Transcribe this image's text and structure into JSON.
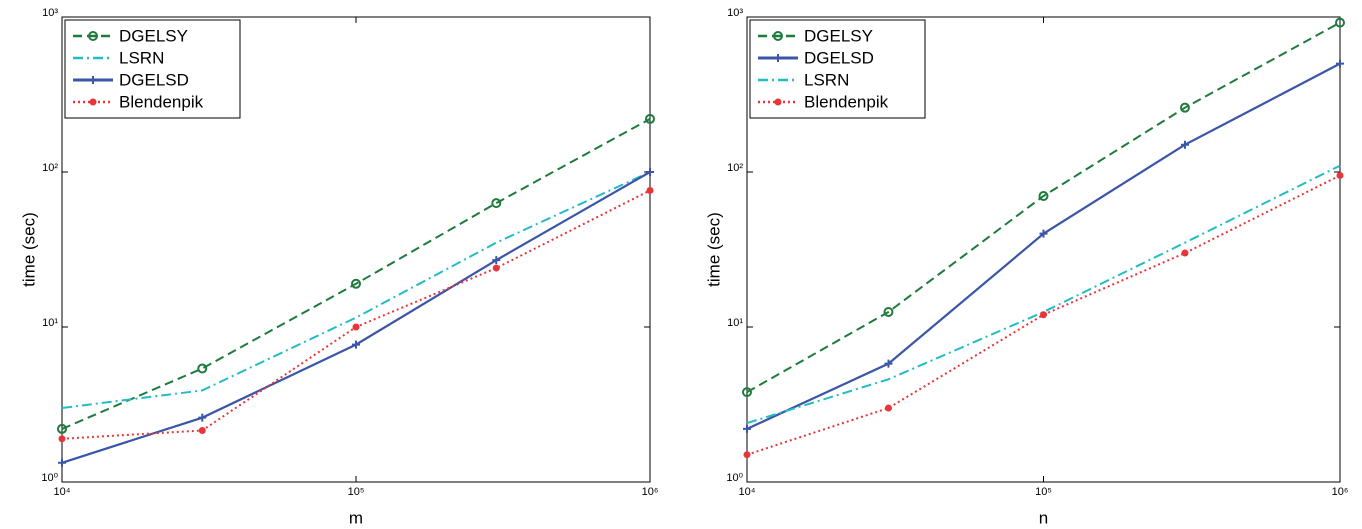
{
  "chart_data": [
    {
      "type": "line",
      "xlabel": "m",
      "ylabel": "time (sec)",
      "xscale": "log",
      "yscale": "log",
      "legend": "upper left",
      "x": [
        10000,
        30000,
        100000,
        300000,
        1000000
      ],
      "xlim": [
        10000,
        1000000
      ],
      "xticks": [
        {
          "value": 10000,
          "label": "10⁴"
        },
        {
          "value": 100000,
          "label": "10⁵"
        },
        {
          "value": 1000000,
          "label": "10⁶"
        }
      ],
      "ylim": [
        1,
        1000
      ],
      "yticks": [
        {
          "value": 1,
          "label": "10⁰"
        },
        {
          "value": 10,
          "label": "10¹"
        },
        {
          "value": 100,
          "label": "10²"
        },
        {
          "value": 1000,
          "label": "10³"
        }
      ],
      "series": [
        {
          "name": "DGELSY",
          "color": "#1e7b3c",
          "linestyle": "dashed",
          "marker": "circle",
          "values": [
            2.2,
            5.4,
            19,
            63,
            220
          ]
        },
        {
          "name": "LSRN",
          "color": "#22bcc4",
          "linestyle": "dashdot",
          "marker": "none",
          "values": [
            3.0,
            3.9,
            11.5,
            35,
            100
          ]
        },
        {
          "name": "DGELSD",
          "color": "#3b55a8",
          "linestyle": "solid",
          "marker": "plus",
          "values": [
            1.33,
            2.6,
            7.7,
            27,
            100
          ]
        },
        {
          "name": "Blendenpik",
          "color": "#e8353a",
          "linestyle": "dotted",
          "marker": "dot",
          "values": [
            1.9,
            2.15,
            10,
            24,
            76
          ]
        }
      ]
    },
    {
      "type": "line",
      "xlabel": "n",
      "ylabel": "time (sec)",
      "xscale": "log",
      "yscale": "log",
      "legend": "upper left",
      "x": [
        10000,
        30000,
        100000,
        300000,
        1000000
      ],
      "xlim": [
        10000,
        1000000
      ],
      "xticks": [
        {
          "value": 10000,
          "label": "10⁴"
        },
        {
          "value": 100000,
          "label": "10⁵"
        },
        {
          "value": 1000000,
          "label": "10⁶"
        }
      ],
      "ylim": [
        1,
        1000
      ],
      "yticks": [
        {
          "value": 1,
          "label": "10⁰"
        },
        {
          "value": 10,
          "label": "10¹"
        },
        {
          "value": 100,
          "label": "10²"
        },
        {
          "value": 1000,
          "label": "10³"
        }
      ],
      "series": [
        {
          "name": "DGELSY",
          "color": "#1e7b3c",
          "linestyle": "dashed",
          "marker": "circle",
          "values": [
            3.8,
            12.5,
            70,
            260,
            920
          ]
        },
        {
          "name": "DGELSD",
          "color": "#3b55a8",
          "linestyle": "solid",
          "marker": "plus",
          "values": [
            2.2,
            5.8,
            40,
            150,
            500
          ]
        },
        {
          "name": "LSRN",
          "color": "#22bcc4",
          "linestyle": "dashdot",
          "marker": "none",
          "values": [
            2.4,
            4.6,
            12.5,
            35,
            110
          ]
        },
        {
          "name": "Blendenpik",
          "color": "#e8353a",
          "linestyle": "dotted",
          "marker": "dot",
          "values": [
            1.5,
            3.0,
            12,
            30,
            95
          ]
        }
      ]
    }
  ]
}
